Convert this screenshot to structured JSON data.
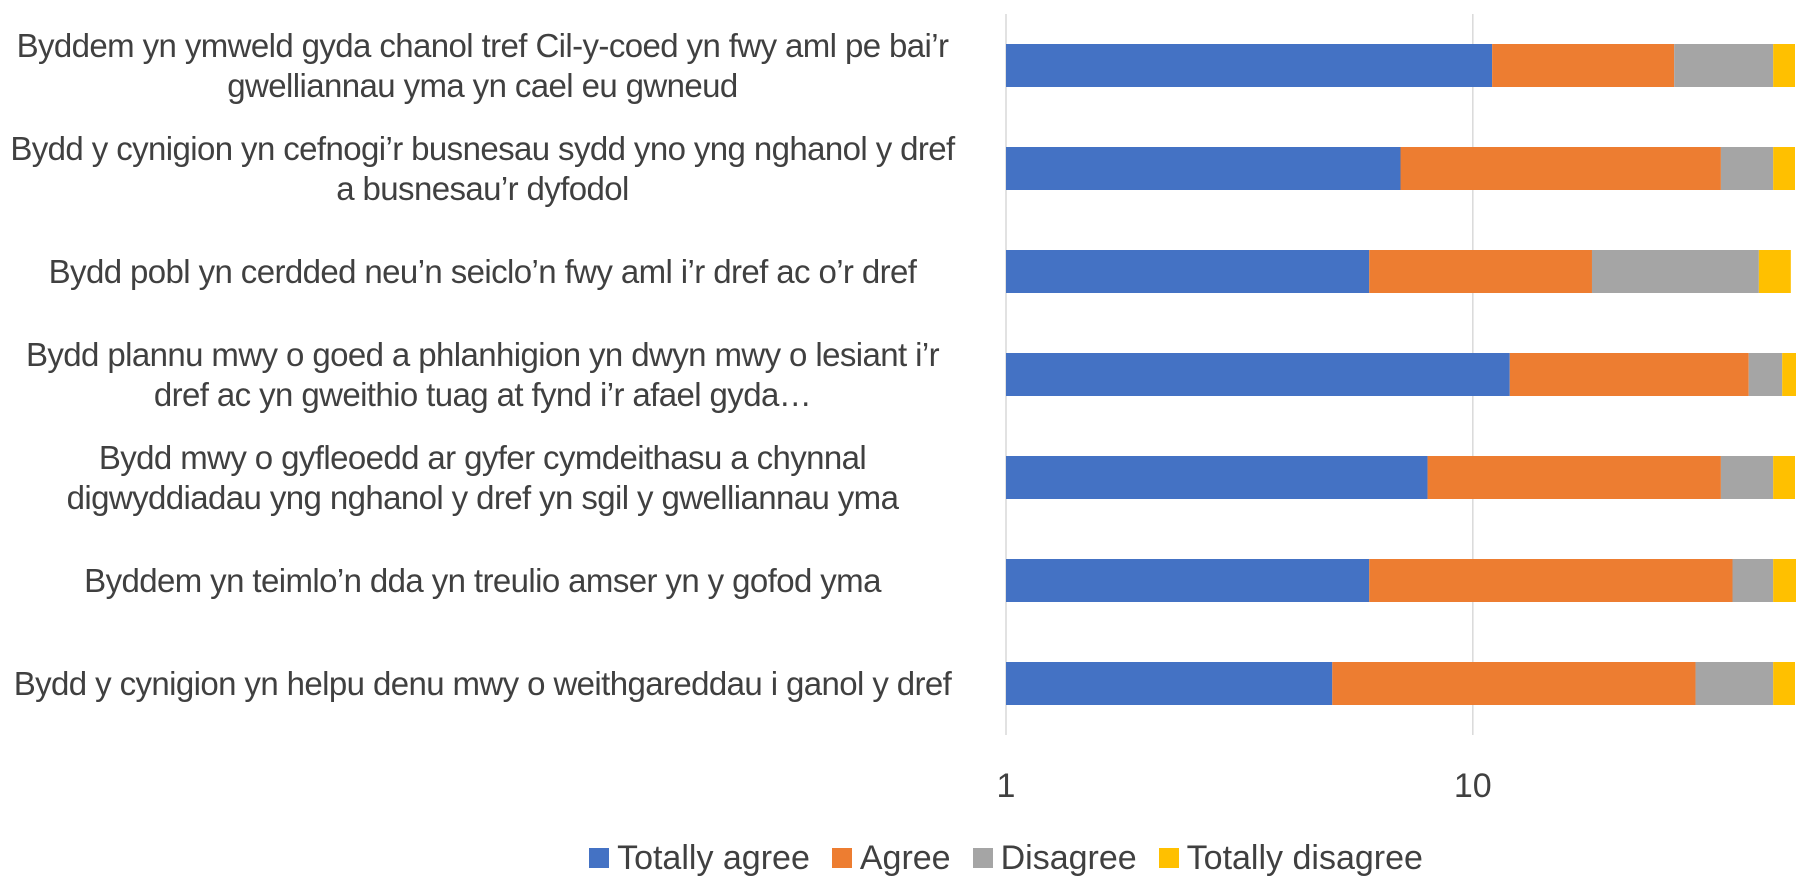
{
  "chart_data": {
    "type": "stacked-barh",
    "categories": [
      "Byddem yn ymweld gyda chanol tref Cil-y-coed yn fwy aml pe bai’r gwelliannau yma yn cael eu gwneud",
      "Bydd y cynigion yn cefnogi’r busnesau sydd yno yng nghanol y dref a busnesau’r dyfodol",
      "Bydd pobl yn cerdded neu’n seiclo’n fwy aml i’r dref ac o’r dref",
      "Bydd plannu mwy o goed a phlanhigion yn dwyn mwy o lesiant i’r dref ac yn gweithio tuag at fynd i’r afael gyda…",
      "Bydd mwy o gyfleoedd ar gyfer cymdeithasu a chynnal digwyddiadau yng nghanol y dref yn sgil y gwelliannau yma",
      "Byddem yn teimlo’n dda yn treulio amser yn y gofod yma",
      "Bydd y cynigion yn helpu denu mwy o weithgareddau i ganol y dref"
    ],
    "series": [
      {
        "name": "Totally agree",
        "color": "#4472c4",
        "values": [
          10,
          6,
          5,
          11,
          7,
          5,
          4
        ]
      },
      {
        "name": "Agree",
        "color": "#ed7d31",
        "values": [
          16,
          27,
          12,
          27,
          26,
          30,
          25
        ]
      },
      {
        "name": "Disagree",
        "color": "#a5a5a5",
        "values": [
          17,
          10,
          23,
          7,
          10,
          8,
          14
        ]
      },
      {
        "name": "Totally disagree",
        "color": "#ffc000",
        "values": [
          5,
          5,
          7,
          4,
          5,
          6,
          5
        ]
      }
    ],
    "xscale": "log",
    "xlim": [
      1,
      49
    ],
    "xticks": [
      1,
      10
    ],
    "grid": true,
    "legend": "bottom"
  }
}
